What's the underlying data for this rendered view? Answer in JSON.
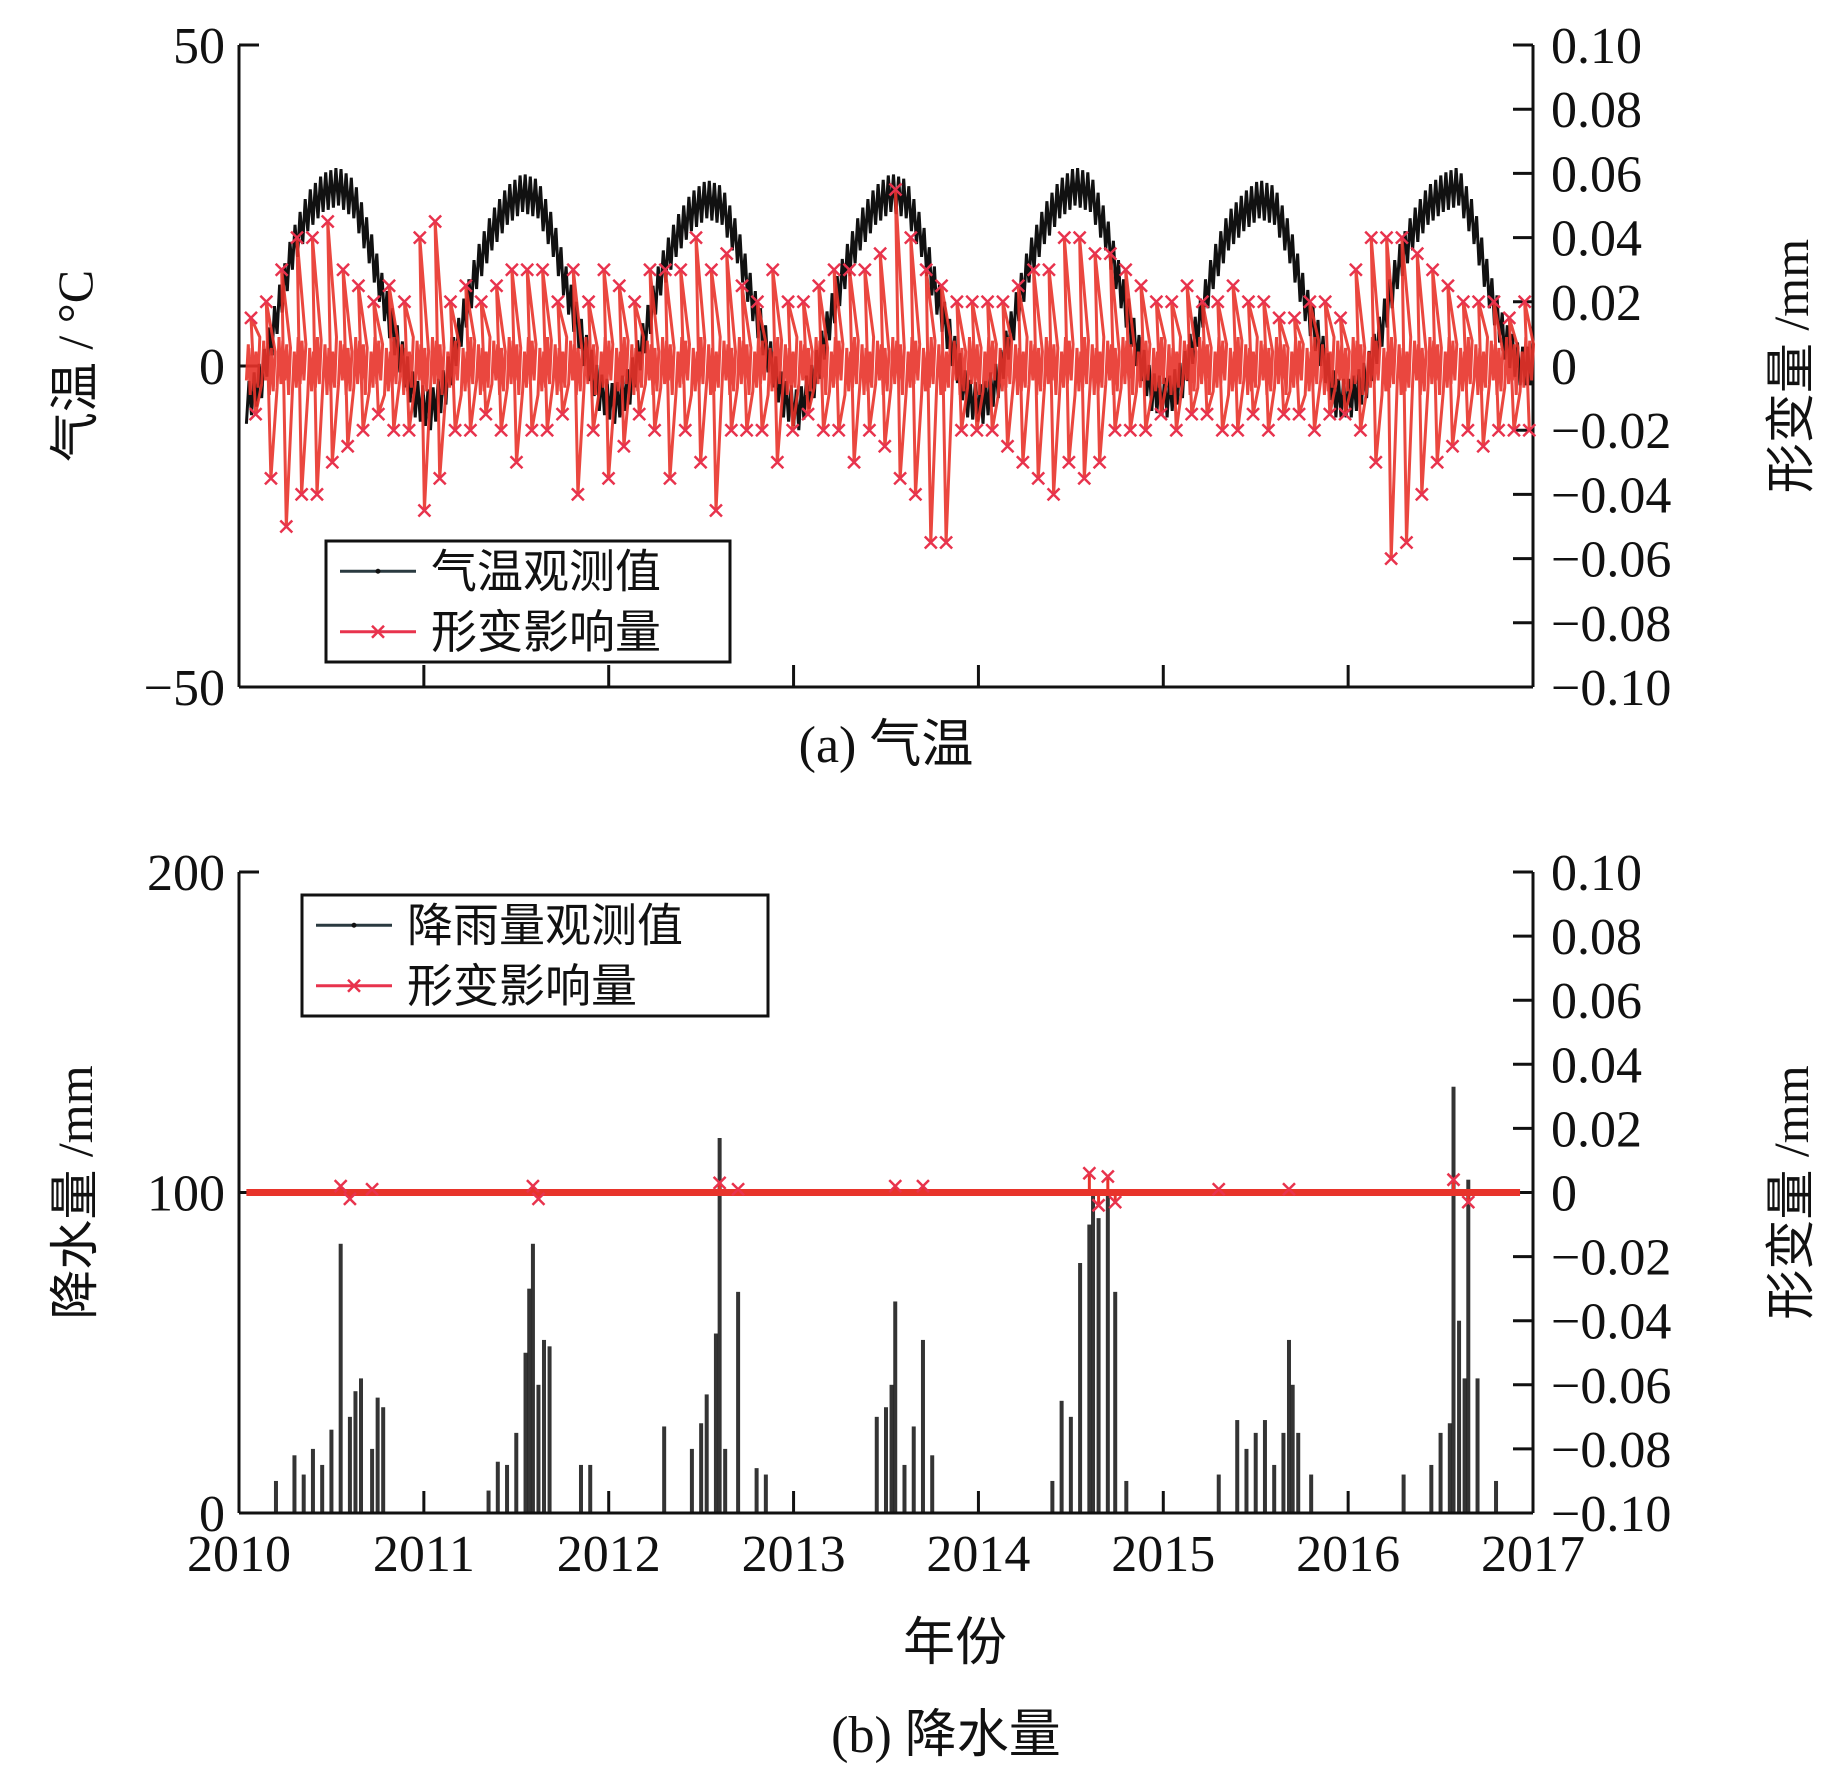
{
  "chart_data": [
    {
      "type": "line",
      "panel_caption": "(a) 气温",
      "x_range": [
        2010,
        2017
      ],
      "x_ticks": [
        2010,
        2011,
        2012,
        2013,
        2014,
        2015,
        2016,
        2017
      ],
      "ylabel_left": "气温 / °C",
      "ylim_left": [
        -50,
        50
      ],
      "yticks_left": [
        "50",
        "0",
        "−50"
      ],
      "ylabel_right": "形变量 /mm",
      "ylim_right": [
        -0.1,
        0.1
      ],
      "yticks_right": [
        "0.10",
        "0.08",
        "0.06",
        "0.04",
        "0.02",
        "0",
        "−0.02",
        "−0.04",
        "−0.06",
        "−0.08",
        "−0.10"
      ],
      "legend": [
        "气温观测值",
        "形变影响量"
      ],
      "legend_position": "lower-left",
      "series": [
        {
          "name": "气温观测值",
          "color": "#111111",
          "axis": "left",
          "frequency": "monthly",
          "values": [
            -6,
            -2,
            8,
            18,
            24,
            27,
            28,
            26,
            19,
            10,
            2,
            -5,
            -7,
            -3,
            6,
            15,
            21,
            25,
            27,
            26,
            20,
            11,
            3,
            -4,
            -6,
            -3,
            5,
            14,
            20,
            24,
            26,
            25,
            19,
            10,
            2,
            -5,
            -7,
            -2,
            7,
            15,
            21,
            25,
            27,
            26,
            20,
            11,
            3,
            -5,
            -6,
            -2,
            7,
            16,
            22,
            26,
            28,
            27,
            21,
            12,
            3,
            -4,
            -5,
            -2,
            6,
            15,
            21,
            24,
            26,
            25,
            19,
            10,
            3,
            -5,
            -5,
            -2,
            6,
            15,
            21,
            25,
            27,
            28,
            22,
            12,
            4,
            0
          ]
        },
        {
          "name": "形变影响量",
          "color": "#e8332a",
          "axis": "right",
          "frequency": "monthly",
          "max": [
            0.015,
            0.02,
            0.03,
            0.04,
            0.04,
            0.045,
            0.03,
            0.025,
            0.02,
            0.025,
            0.02,
            0.04,
            0.045,
            0.02,
            0.025,
            0.02,
            0.025,
            0.03,
            0.03,
            0.03,
            0.02,
            0.03,
            0.02,
            0.03,
            0.025,
            0.02,
            0.03,
            0.03,
            0.03,
            0.04,
            0.03,
            0.035,
            0.025,
            0.02,
            0.03,
            0.02,
            0.02,
            0.025,
            0.03,
            0.03,
            0.03,
            0.035,
            0.055,
            0.04,
            0.03,
            0.025,
            0.02,
            0.02,
            0.02,
            0.02,
            0.025,
            0.03,
            0.03,
            0.04,
            0.04,
            0.035,
            0.035,
            0.03,
            0.025,
            0.02,
            0.02,
            0.025,
            0.02,
            0.02,
            0.025,
            0.02,
            0.02,
            0.015,
            0.015,
            0.02,
            0.02,
            0.015,
            0.03,
            0.04,
            0.04,
            0.04,
            0.035,
            0.03,
            0.025,
            0.02,
            0.02,
            0.02,
            0.015,
            0.02
          ],
          "min": [
            -0.015,
            -0.035,
            -0.05,
            -0.04,
            -0.04,
            -0.03,
            -0.025,
            -0.02,
            -0.015,
            -0.02,
            -0.02,
            -0.045,
            -0.035,
            -0.02,
            -0.02,
            -0.015,
            -0.02,
            -0.03,
            -0.02,
            -0.02,
            -0.015,
            -0.04,
            -0.02,
            -0.035,
            -0.025,
            -0.015,
            -0.02,
            -0.035,
            -0.02,
            -0.03,
            -0.045,
            -0.02,
            -0.02,
            -0.02,
            -0.03,
            -0.02,
            -0.015,
            -0.02,
            -0.02,
            -0.03,
            -0.02,
            -0.025,
            -0.035,
            -0.04,
            -0.055,
            -0.055,
            -0.02,
            -0.02,
            -0.02,
            -0.025,
            -0.03,
            -0.035,
            -0.04,
            -0.03,
            -0.035,
            -0.03,
            -0.02,
            -0.02,
            -0.02,
            -0.015,
            -0.02,
            -0.015,
            -0.015,
            -0.02,
            -0.02,
            -0.015,
            -0.02,
            -0.015,
            -0.015,
            -0.02,
            -0.015,
            -0.015,
            -0.02,
            -0.03,
            -0.06,
            -0.055,
            -0.04,
            -0.03,
            -0.025,
            -0.02,
            -0.025,
            -0.02,
            -0.02,
            -0.02
          ]
        }
      ]
    },
    {
      "type": "bar",
      "panel_caption": "(b) 降水量",
      "xlabel": "年份",
      "x_range": [
        2010,
        2017
      ],
      "x_ticks": [
        "2010",
        "2011",
        "2012",
        "2013",
        "2014",
        "2015",
        "2016",
        "2017"
      ],
      "ylabel_left": "降水量 /mm",
      "ylim_left": [
        0,
        200
      ],
      "yticks_left": [
        "200",
        "100",
        "0"
      ],
      "ylabel_right": "形变量 /mm",
      "ylim_right": [
        -0.1,
        0.1
      ],
      "yticks_right": [
        "0.10",
        "0.08",
        "0.06",
        "0.04",
        "0.02",
        "0",
        "−0.02",
        "−0.04",
        "−0.06",
        "−0.08",
        "−0.10"
      ],
      "legend": [
        "降雨量观测值",
        "形变影响量"
      ],
      "legend_position": "upper-left",
      "series": [
        {
          "name": "降雨量观测值",
          "color": "#111111",
          "axis": "left",
          "points": [
            [
              2010.2,
              10
            ],
            [
              2010.3,
              18
            ],
            [
              2010.35,
              12
            ],
            [
              2010.4,
              20
            ],
            [
              2010.45,
              15
            ],
            [
              2010.5,
              26
            ],
            [
              2010.55,
              84
            ],
            [
              2010.6,
              30
            ],
            [
              2010.63,
              38
            ],
            [
              2010.66,
              42
            ],
            [
              2010.72,
              20
            ],
            [
              2010.75,
              36
            ],
            [
              2010.78,
              33
            ],
            [
              2011.35,
              7
            ],
            [
              2011.4,
              16
            ],
            [
              2011.45,
              15
            ],
            [
              2011.5,
              25
            ],
            [
              2011.55,
              50
            ],
            [
              2011.57,
              70
            ],
            [
              2011.59,
              84
            ],
            [
              2011.62,
              40
            ],
            [
              2011.65,
              54
            ],
            [
              2011.68,
              52
            ],
            [
              2011.85,
              15
            ],
            [
              2011.9,
              15
            ],
            [
              2012.3,
              27
            ],
            [
              2012.45,
              20
            ],
            [
              2012.5,
              28
            ],
            [
              2012.53,
              37
            ],
            [
              2012.58,
              56
            ],
            [
              2012.6,
              117
            ],
            [
              2012.63,
              20
            ],
            [
              2012.7,
              69
            ],
            [
              2012.8,
              14
            ],
            [
              2012.85,
              12
            ],
            [
              2013.45,
              30
            ],
            [
              2013.5,
              33
            ],
            [
              2013.53,
              40
            ],
            [
              2013.55,
              66
            ],
            [
              2013.6,
              15
            ],
            [
              2013.65,
              27
            ],
            [
              2013.7,
              54
            ],
            [
              2013.75,
              18
            ],
            [
              2014.4,
              10
            ],
            [
              2014.45,
              35
            ],
            [
              2014.5,
              30
            ],
            [
              2014.55,
              78
            ],
            [
              2014.6,
              90
            ],
            [
              2014.62,
              100
            ],
            [
              2014.65,
              92
            ],
            [
              2014.7,
              100
            ],
            [
              2014.74,
              69
            ],
            [
              2014.8,
              10
            ],
            [
              2015.3,
              12
            ],
            [
              2015.4,
              29
            ],
            [
              2015.45,
              20
            ],
            [
              2015.5,
              25
            ],
            [
              2015.55,
              29
            ],
            [
              2015.6,
              15
            ],
            [
              2015.65,
              25
            ],
            [
              2015.68,
              54
            ],
            [
              2015.7,
              40
            ],
            [
              2015.73,
              25
            ],
            [
              2015.8,
              12
            ],
            [
              2016.3,
              12
            ],
            [
              2016.45,
              15
            ],
            [
              2016.5,
              25
            ],
            [
              2016.55,
              28
            ],
            [
              2016.57,
              133
            ],
            [
              2016.6,
              60
            ],
            [
              2016.63,
              42
            ],
            [
              2016.65,
              104
            ],
            [
              2016.7,
              42
            ],
            [
              2016.8,
              10
            ]
          ]
        },
        {
          "name": "形变影响量",
          "color": "#e8332a",
          "axis": "right",
          "points": [
            [
              2010.55,
              0.002
            ],
            [
              2010.6,
              -0.002
            ],
            [
              2010.72,
              0.001
            ],
            [
              2011.59,
              0.002
            ],
            [
              2011.62,
              -0.002
            ],
            [
              2012.6,
              0.003
            ],
            [
              2012.7,
              0.001
            ],
            [
              2013.55,
              0.002
            ],
            [
              2013.7,
              0.002
            ],
            [
              2014.6,
              0.006
            ],
            [
              2014.65,
              -0.004
            ],
            [
              2014.7,
              0.005
            ],
            [
              2014.74,
              -0.003
            ],
            [
              2015.3,
              0.001
            ],
            [
              2015.68,
              0.001
            ],
            [
              2016.57,
              0.004
            ],
            [
              2016.65,
              -0.003
            ]
          ]
        }
      ]
    }
  ]
}
